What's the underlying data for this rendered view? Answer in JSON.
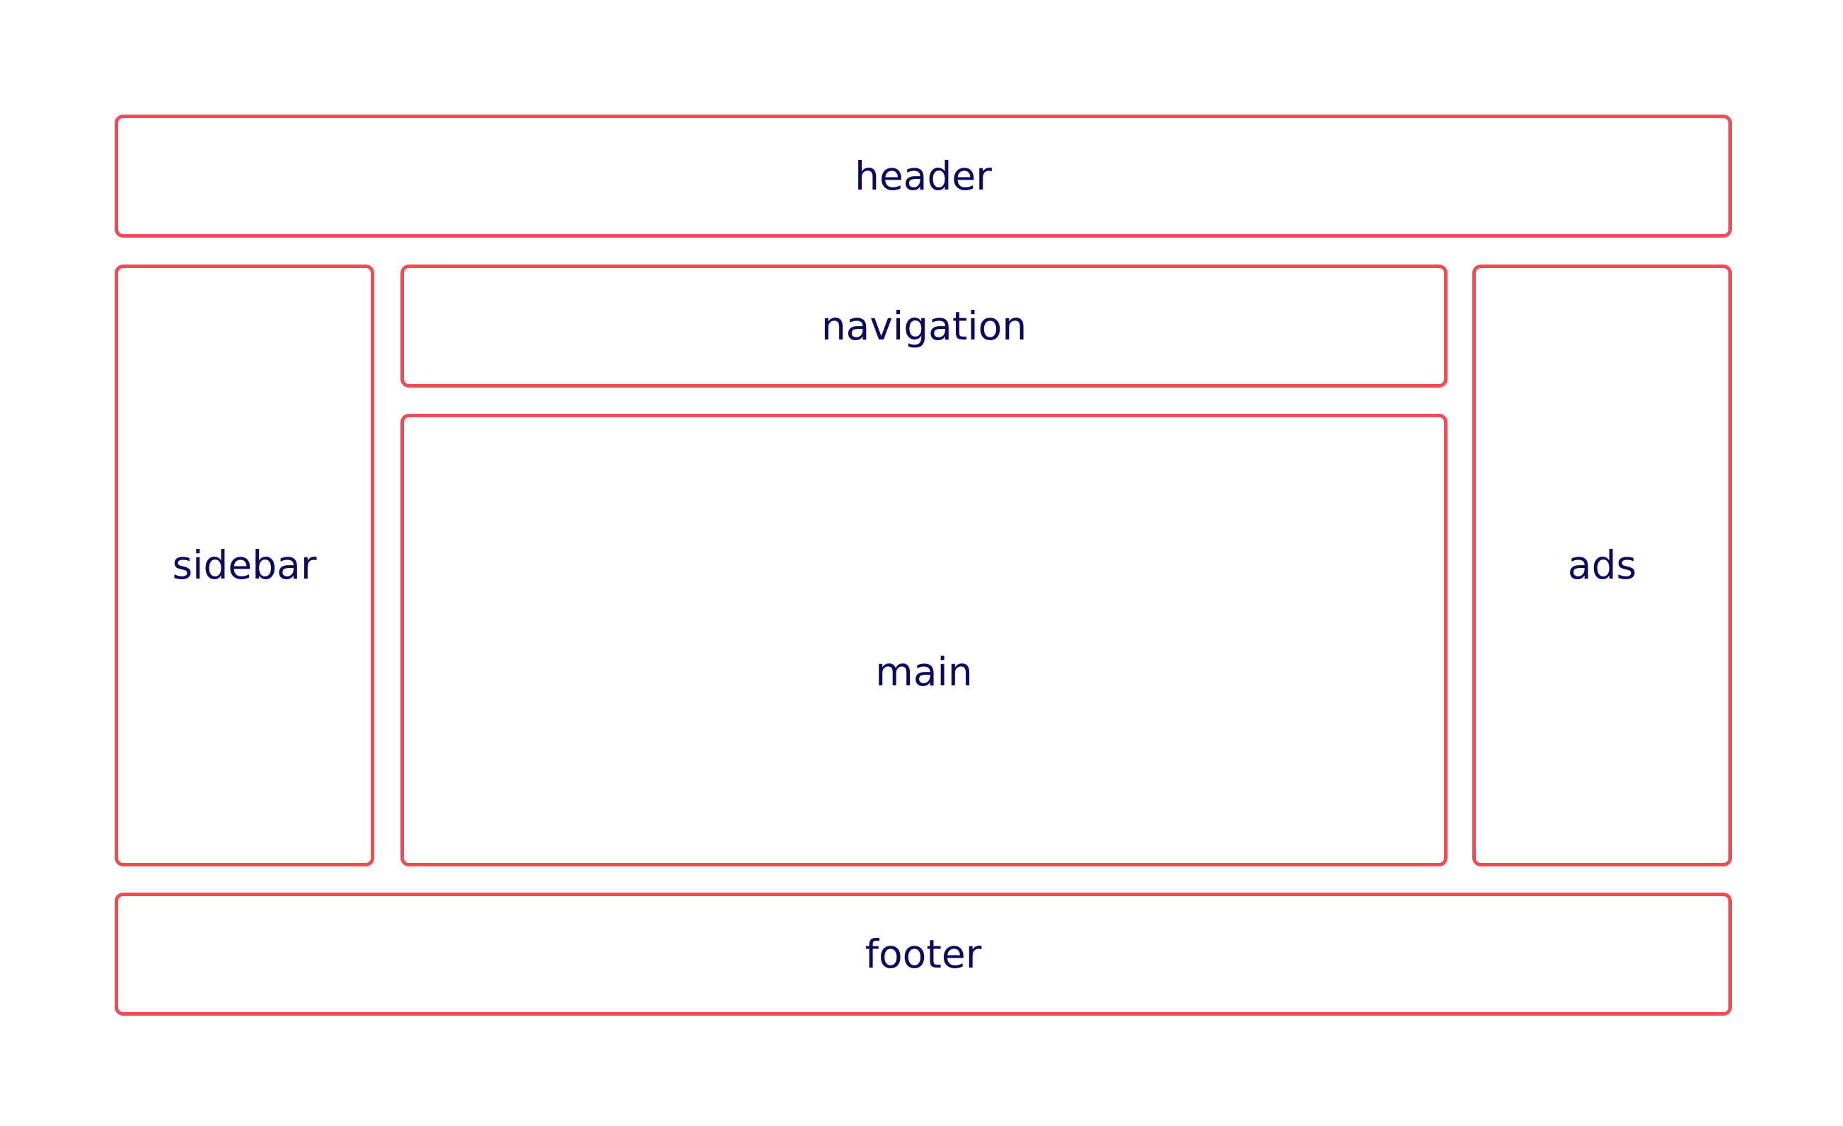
{
  "diagram": {
    "regions": {
      "header": "header",
      "navigation": "navigation",
      "sidebar": "sidebar",
      "main": "main",
      "ads": "ads",
      "footer": "footer"
    },
    "colors": {
      "border": "#f14c56",
      "text": "#0c0a5c",
      "background": "#ffffff"
    }
  }
}
